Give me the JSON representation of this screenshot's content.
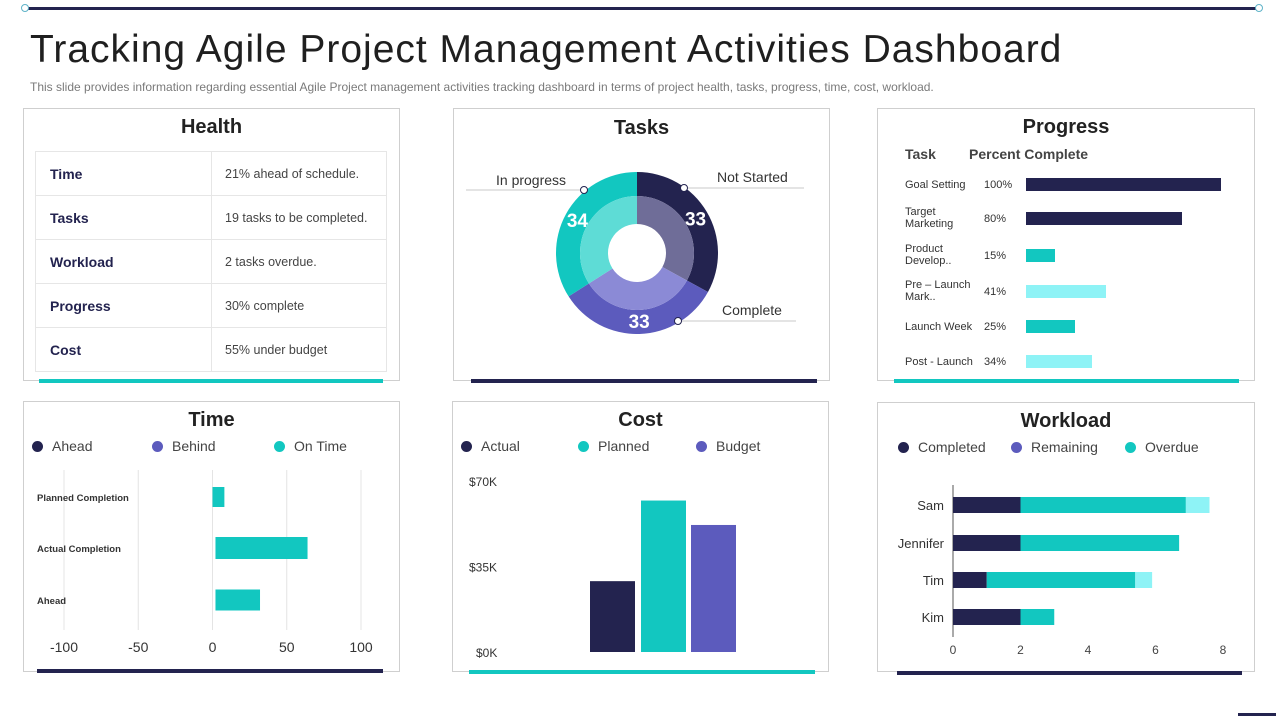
{
  "page": {
    "title": "Tracking Agile Project Management Activities Dashboard",
    "subtitle": "This slide provides information regarding essential Agile Project management activities tracking dashboard in terms of project health, tasks, progress, time, cost, workload."
  },
  "colors": {
    "navy": "#23234f",
    "teal": "#12c7c0",
    "purple": "#5c5bbd",
    "lightcyan": "#8ef3f6"
  },
  "health": {
    "title": "Health",
    "rows": [
      {
        "label": "Time",
        "value": "21% ahead of schedule."
      },
      {
        "label": "Tasks",
        "value": "19 tasks to be completed."
      },
      {
        "label": "Workload",
        "value": "2 tasks overdue."
      },
      {
        "label": "Progress",
        "value": "30% complete"
      },
      {
        "label": "Cost",
        "value": "55% under budget"
      }
    ]
  },
  "tasks": {
    "title": "Tasks",
    "labels": {
      "in_progress": "In progress",
      "not_started": "Not Started",
      "complete": "Complete"
    }
  },
  "progress": {
    "title": "Progress",
    "col_task": "Task",
    "col_percent": "Percent Complete",
    "rows": [
      {
        "task": "Goal Setting",
        "pct_label": "100%"
      },
      {
        "task": "Target Marketing",
        "pct_label": "80%"
      },
      {
        "task": "Product Develop..",
        "pct_label": "15%"
      },
      {
        "task": "Pre – Launch Mark..",
        "pct_label": "41%"
      },
      {
        "task": "Launch Week",
        "pct_label": "25%"
      },
      {
        "task": "Post - Launch",
        "pct_label": "34%"
      }
    ]
  },
  "time": {
    "title": "Time",
    "legend": [
      "Ahead",
      "Behind",
      "On Time"
    ]
  },
  "cost": {
    "title": "Cost",
    "legend": [
      "Actual",
      "Planned",
      "Budget"
    ]
  },
  "workload": {
    "title": "Workload",
    "legend": [
      "Completed",
      "Remaining",
      "Overdue"
    ]
  },
  "chart_data": [
    {
      "type": "pie",
      "title": "Tasks",
      "categories": [
        "Not Started",
        "Complete",
        "In progress"
      ],
      "values": [
        33,
        33,
        34
      ],
      "colors": [
        "#23234f",
        "#5c5bbd",
        "#12c7c0"
      ],
      "inner_colors": [
        "#6f6d98",
        "#8b8ad6",
        "#5edcd6"
      ]
    },
    {
      "type": "bar",
      "orientation": "horizontal",
      "title": "Progress",
      "categories": [
        "Goal Setting",
        "Target Marketing",
        "Product Develop..",
        "Pre – Launch Mark..",
        "Launch Week",
        "Post - Launch"
      ],
      "values": [
        100,
        80,
        15,
        41,
        25,
        34
      ],
      "colors": [
        "#23234f",
        "#23234f",
        "#12c7c0",
        "#8ef3f6",
        "#12c7c0",
        "#8ef3f6"
      ],
      "xlim": [
        0,
        100
      ]
    },
    {
      "type": "bar",
      "orientation": "horizontal",
      "title": "Time",
      "categories": [
        "Planned Completion",
        "Actual  Completion",
        "Ahead"
      ],
      "values": [
        8,
        62,
        30
      ],
      "starts": [
        0,
        2,
        2
      ],
      "xlim": [
        -100,
        100
      ],
      "xticks": [
        -100,
        -50,
        0,
        50,
        100
      ],
      "legend": [
        "Ahead",
        "Behind",
        "On Time"
      ]
    },
    {
      "type": "bar",
      "title": "Cost",
      "categories": [
        "Actual",
        "Planned",
        "Budget"
      ],
      "values": [
        29,
        62,
        52
      ],
      "colors": [
        "#23234f",
        "#12c7c0",
        "#5c5bbd"
      ],
      "ylim": [
        0,
        70
      ],
      "ytick_labels": [
        "$70K",
        "$35K",
        "$0K"
      ],
      "yticks": [
        70,
        35,
        0
      ]
    },
    {
      "type": "bar",
      "orientation": "horizontal",
      "stacked": true,
      "title": "Workload",
      "categories": [
        "Sam",
        "Jennifer",
        "Tim",
        "Kim"
      ],
      "series": [
        {
          "name": "Completed",
          "values": [
            2,
            2,
            1,
            2
          ]
        },
        {
          "name": "Remaining",
          "values": [
            4.9,
            4.7,
            4.4,
            1
          ]
        },
        {
          "name": "Overdue",
          "values": [
            0.7,
            0,
            0.5,
            0
          ]
        }
      ],
      "series_colors": [
        "#23234f",
        "#12c7c0",
        "#8ef3f6"
      ],
      "xlim": [
        0,
        8
      ],
      "xticks": [
        0,
        2,
        4,
        6,
        8
      ]
    }
  ]
}
